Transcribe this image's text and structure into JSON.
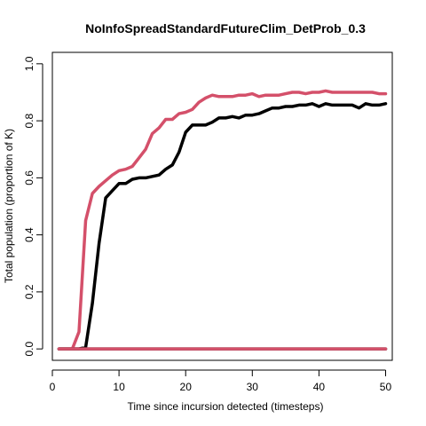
{
  "chart_data": {
    "type": "line",
    "title": "NoInfoSpreadStandardFutureClim_DetProb_0.3",
    "xlabel": "Time since incursion detected (timesteps)",
    "ylabel": "Total population (proportion of K)",
    "xlim": [
      0,
      51
    ],
    "ylim": [
      -0.04,
      1.04
    ],
    "xticks": [
      "0",
      "10",
      "20",
      "30",
      "40",
      "50"
    ],
    "yticks": [
      "0.0",
      "0.2",
      "0.4",
      "0.6",
      "0.8",
      "1.0"
    ],
    "grid": false,
    "legend": "none",
    "series": [
      {
        "color": "#000000",
        "x": [
          1,
          2,
          3,
          4,
          5,
          6,
          7,
          8,
          9,
          10,
          11,
          12,
          13,
          14,
          15,
          16,
          17,
          18,
          19,
          20,
          21,
          22,
          23,
          24,
          25,
          26,
          27,
          28,
          29,
          30,
          31,
          32,
          33,
          34,
          35,
          36,
          37,
          38,
          39,
          40,
          41,
          42,
          43,
          44,
          45,
          46,
          47,
          48,
          49,
          50
        ],
        "y": [
          0,
          0,
          0,
          0,
          0.005,
          0.16,
          0.37,
          0.53,
          0.555,
          0.58,
          0.58,
          0.595,
          0.6,
          0.6,
          0.605,
          0.61,
          0.63,
          0.645,
          0.69,
          0.76,
          0.785,
          0.785,
          0.785,
          0.795,
          0.81,
          0.81,
          0.815,
          0.81,
          0.82,
          0.82,
          0.825,
          0.835,
          0.845,
          0.845,
          0.85,
          0.85,
          0.855,
          0.855,
          0.86,
          0.85,
          0.86,
          0.855,
          0.855,
          0.855,
          0.855,
          0.845,
          0.86,
          0.855,
          0.855,
          0.86
        ]
      },
      {
        "color": "#d4506a",
        "x": [
          1,
          2,
          3,
          4,
          5,
          6,
          7,
          8,
          9,
          10,
          11,
          12,
          13,
          14,
          15,
          16,
          17,
          18,
          19,
          20,
          21,
          22,
          23,
          24,
          25,
          26,
          27,
          28,
          29,
          30,
          31,
          32,
          33,
          34,
          35,
          36,
          37,
          38,
          39,
          40,
          41,
          42,
          43,
          44,
          45,
          46,
          47,
          48,
          49,
          50
        ],
        "y": [
          0,
          0,
          0,
          0.06,
          0.45,
          0.545,
          0.57,
          0.59,
          0.61,
          0.625,
          0.63,
          0.64,
          0.67,
          0.7,
          0.755,
          0.775,
          0.805,
          0.805,
          0.825,
          0.83,
          0.84,
          0.865,
          0.88,
          0.89,
          0.885,
          0.885,
          0.885,
          0.89,
          0.89,
          0.895,
          0.885,
          0.89,
          0.89,
          0.89,
          0.895,
          0.9,
          0.9,
          0.895,
          0.9,
          0.9,
          0.905,
          0.9,
          0.9,
          0.9,
          0.9,
          0.9,
          0.9,
          0.9,
          0.895,
          0.895
        ]
      },
      {
        "color": "#000000",
        "x": [
          1,
          50
        ],
        "y": [
          0,
          0
        ]
      },
      {
        "color": "#d4506a",
        "x": [
          1,
          50
        ],
        "y": [
          0,
          0
        ]
      }
    ]
  }
}
